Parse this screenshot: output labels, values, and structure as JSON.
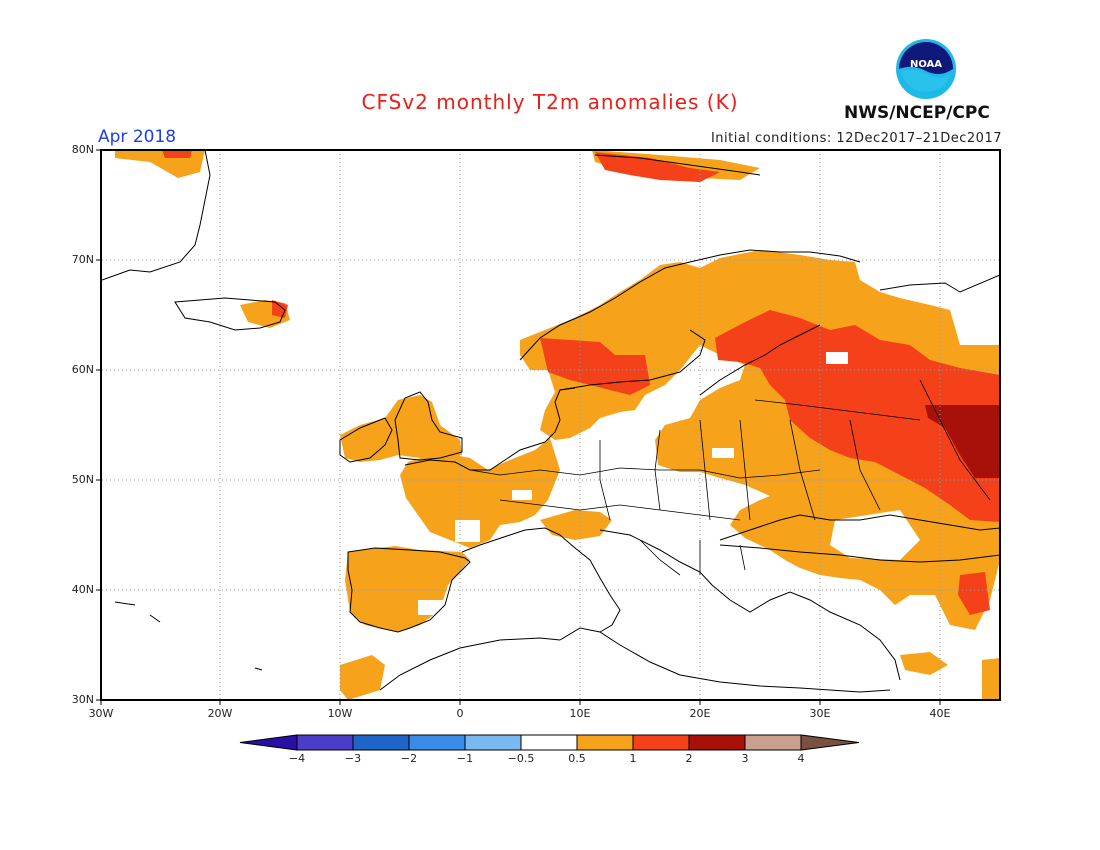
{
  "header": {
    "title": "CFSv2 monthly T2m anomalies (K)",
    "month": "Apr 2018",
    "initial_conditions": "Initial conditions: 12Dec2017–21Dec2017",
    "agency": "NWS/NCEP/CPC",
    "logo_text": "NOAA",
    "logo_icon": "noaa-logo-icon"
  },
  "map": {
    "lat_range": [
      30,
      80
    ],
    "lon_range": [
      -30,
      45
    ],
    "lat_labels": [
      "80N",
      "70N",
      "60N",
      "50N",
      "40N",
      "30N"
    ],
    "lon_labels": [
      "30W",
      "20W",
      "10W",
      "0",
      "10E",
      "20E",
      "30E",
      "40E"
    ]
  },
  "colorbar": {
    "labels": [
      "−4",
      "−3",
      "−2",
      "−1",
      "−0.5",
      "0.5",
      "1",
      "2",
      "3",
      "4"
    ],
    "colors": [
      "#2a0fa6",
      "#4a3ec8",
      "#1f64c8",
      "#3a8be8",
      "#7ab8f0",
      "#ffffff",
      "#f7a21b",
      "#f5411a",
      "#a8100a",
      "#c9a08c",
      "#7a5040"
    ]
  }
}
